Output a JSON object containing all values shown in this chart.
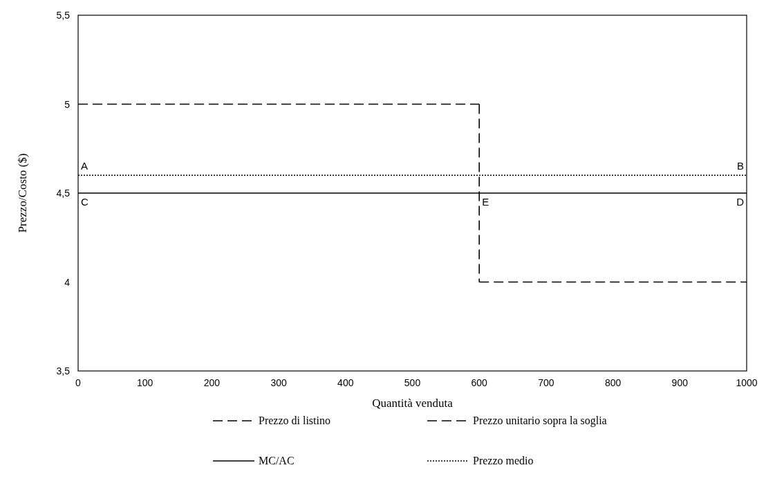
{
  "chart_data": {
    "type": "line",
    "xlabel": "Quantità venduta",
    "ylabel": "Prezzo/Costo ($)",
    "xlim": [
      0,
      1000
    ],
    "xticks": [
      0,
      100,
      200,
      300,
      400,
      500,
      600,
      700,
      800,
      900,
      1000
    ],
    "ylim": [
      3.5,
      5.5
    ],
    "yticks": [
      {
        "value": 3.5,
        "label": "3,5"
      },
      {
        "value": 4,
        "label": "4"
      },
      {
        "value": 4.5,
        "label": "4,5"
      },
      {
        "value": 5,
        "label": "5"
      },
      {
        "value": 5.5,
        "label": "5,5"
      }
    ],
    "grid": false,
    "legend": "bottom",
    "series": [
      {
        "name": "Prezzo di listino",
        "color": "#000000",
        "x": [
          0,
          600
        ],
        "values": [
          5,
          5
        ],
        "line_style": "dashed"
      },
      {
        "name": "Prezzo unitario sopra la soglia",
        "color": "#000000",
        "x": [
          600,
          1000
        ],
        "values": [
          4,
          4
        ],
        "line_style": "dashed"
      },
      {
        "name": "MC/AC",
        "color": "#000000",
        "x": [
          0,
          1000
        ],
        "values": [
          4.5,
          4.5
        ],
        "line_style": "solid"
      },
      {
        "name": "Prezzo medio",
        "color": "#000000",
        "x": [
          0,
          1000
        ],
        "values": [
          4.6,
          4.6
        ],
        "line_style": "dotted"
      },
      {
        "color": "#000000",
        "x": [
          600,
          600
        ],
        "values": [
          5,
          4
        ],
        "line_style": "dashed"
      }
    ],
    "annotations": [
      {
        "text": "A",
        "x": 0,
        "y": 4.6
      },
      {
        "text": "B",
        "x": 1000,
        "y": 4.6
      },
      {
        "text": "C",
        "x": 0,
        "y": 4.5
      },
      {
        "text": "D",
        "x": 1000,
        "y": 4.5
      },
      {
        "text": "E",
        "x": 600,
        "y": 4.5
      }
    ]
  }
}
